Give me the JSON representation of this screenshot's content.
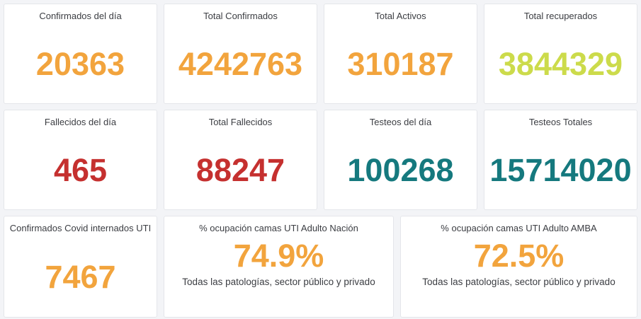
{
  "colors": {
    "page_background": "#f3f4f7",
    "card_background": "#ffffff",
    "card_border": "#e4e6ea",
    "title_text": "#3b3d42",
    "orange": "#f2a43d",
    "lime": "#ccdb4b",
    "red": "#c5302f",
    "teal": "#15797e"
  },
  "rows": [
    {
      "cards": [
        {
          "label": "Confirmados del día",
          "value": "20363",
          "value_color": "#f2a43d"
        },
        {
          "label": "Total Confirmados",
          "value": "4242763",
          "value_color": "#f2a43d"
        },
        {
          "label": "Total Activos",
          "value": "310187",
          "value_color": "#f2a43d"
        },
        {
          "label": "Total recuperados",
          "value": "3844329",
          "value_color": "#ccdb4b"
        }
      ]
    },
    {
      "cards": [
        {
          "label": "Fallecidos del día",
          "value": "465",
          "value_color": "#c5302f"
        },
        {
          "label": "Total Fallecidos",
          "value": "88247",
          "value_color": "#c5302f"
        },
        {
          "label": "Testeos del día",
          "value": "100268",
          "value_color": "#15797e"
        },
        {
          "label": "Testeos Totales",
          "value": "15714020",
          "value_color": "#15797e"
        }
      ]
    },
    {
      "cards": [
        {
          "label": "Confirmados Covid internados UTI",
          "value": "7467",
          "value_color": "#f2a43d"
        },
        {
          "label": "% ocupación camas UTI Adulto Nación",
          "value": "74.9%",
          "value_color": "#f2a43d",
          "subtitle": "Todas las patologías, sector público y privado"
        },
        {
          "label": "% ocupación camas UTI Adulto AMBA",
          "value": "72.5%",
          "value_color": "#f2a43d",
          "subtitle": "Todas las patologías, sector público y privado"
        }
      ]
    }
  ]
}
